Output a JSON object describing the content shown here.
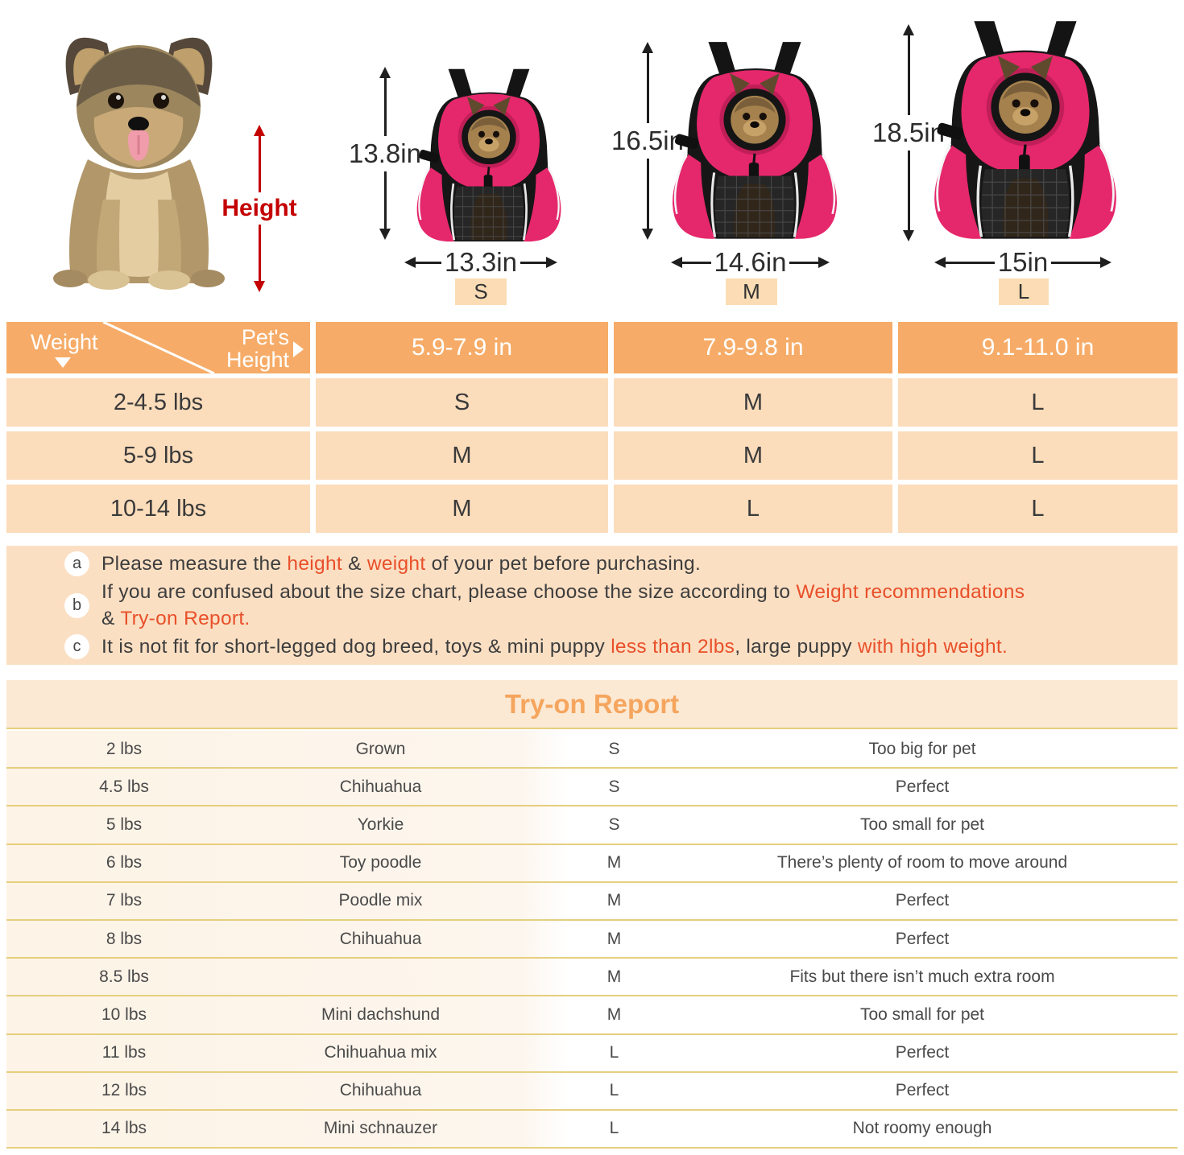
{
  "hero": {
    "height_label": "Height",
    "sizes": [
      {
        "code": "S",
        "height": "13.8in",
        "width": "13.3in"
      },
      {
        "code": "M",
        "height": "16.5in",
        "width": "14.6in"
      },
      {
        "code": "L",
        "height": "18.5in",
        "width": "15in"
      }
    ]
  },
  "size_table": {
    "corner_weight": "Weight",
    "corner_height": "Pet's Height",
    "columns": [
      "5.9-7.9 in",
      "7.9-9.8 in",
      "9.1-11.0 in"
    ],
    "rows": [
      {
        "weight": "2-4.5 lbs",
        "values": [
          "S",
          "M",
          "L"
        ]
      },
      {
        "weight": "5-9 lbs",
        "values": [
          "M",
          "M",
          "L"
        ]
      },
      {
        "weight": "10-14 lbs",
        "values": [
          "M",
          "L",
          "L"
        ]
      }
    ]
  },
  "notes": [
    {
      "badge": "a",
      "lines": [
        [
          {
            "t": "Please measure the ",
            "c": "d"
          },
          {
            "t": "height",
            "c": "r"
          },
          {
            "t": " & ",
            "c": "d"
          },
          {
            "t": "weight",
            "c": "r"
          },
          {
            "t": " of your pet before purchasing.",
            "c": "d"
          }
        ]
      ]
    },
    {
      "badge": "b",
      "lines": [
        [
          {
            "t": "If you are confused about the size chart, please choose the size according to ",
            "c": "d"
          },
          {
            "t": "Weight recommendations",
            "c": "r"
          }
        ],
        [
          {
            "t": "& ",
            "c": "d"
          },
          {
            "t": "Try-on Report.",
            "c": "r"
          }
        ]
      ]
    },
    {
      "badge": "c",
      "lines": [
        [
          {
            "t": "It is not fit for short-legged dog breed, toys & mini puppy ",
            "c": "d"
          },
          {
            "t": "less than 2lbs",
            "c": "r"
          },
          {
            "t": ", large puppy ",
            "c": "d"
          },
          {
            "t": "with high weight.",
            "c": "r"
          }
        ]
      ]
    }
  ],
  "try_on": {
    "title": "Try-on Report",
    "rows": [
      {
        "weight": "2 lbs",
        "breed": "Grown",
        "size": "S",
        "comment": "Too big for pet"
      },
      {
        "weight": "4.5 lbs",
        "breed": "Chihuahua",
        "size": "S",
        "comment": "Perfect"
      },
      {
        "weight": "5 lbs",
        "breed": "Yorkie",
        "size": "S",
        "comment": "Too small for pet"
      },
      {
        "weight": "6 lbs",
        "breed": "Toy poodle",
        "size": "M",
        "comment": "There’s plenty of room to move around"
      },
      {
        "weight": "7 lbs",
        "breed": "Poodle mix",
        "size": "M",
        "comment": "Perfect"
      },
      {
        "weight": "8 lbs",
        "breed": "Chihuahua",
        "size": "M",
        "comment": "Perfect"
      },
      {
        "weight": "8.5 lbs",
        "breed": "",
        "size": "M",
        "comment": "Fits but there isn’t much extra room"
      },
      {
        "weight": "10 lbs",
        "breed": "Mini dachshund",
        "size": "M",
        "comment": "Too small for pet"
      },
      {
        "weight": "11 lbs",
        "breed": "Chihuahua mix",
        "size": "L",
        "comment": "Perfect"
      },
      {
        "weight": "12 lbs",
        "breed": "Chihuahua",
        "size": "L",
        "comment": "Perfect"
      },
      {
        "weight": "14 lbs",
        "breed": "Mini schnauzer",
        "size": "L",
        "comment": "Not roomy enough"
      }
    ]
  },
  "colors": {
    "table_header_orange": "#f6ac68",
    "table_row_peach": "#fbdcbb",
    "notes_bg": "#fbdfc3",
    "red_accent": "#e8502a",
    "tryon_title_bg": "#fbe9d4",
    "tryon_title_text": "#f5a55e",
    "gold_divider": "#e6cf7d",
    "chip_bg": "#fbdcb4",
    "height_arrow_red": "#c40000",
    "backpack_pink": "#e5276b"
  }
}
